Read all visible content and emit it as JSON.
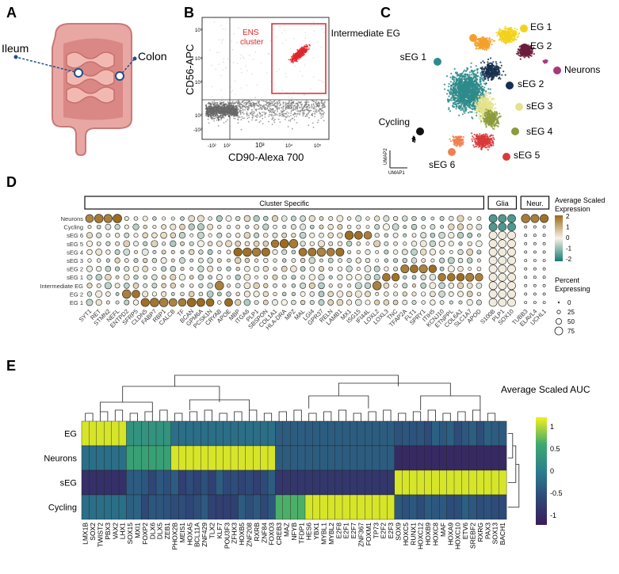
{
  "panel_letters": {
    "a": "A",
    "b": "B",
    "c": "C",
    "d": "D",
    "e": "E"
  },
  "panel_a": {
    "ileum": "Ileum",
    "colon": "Colon"
  },
  "panel_b": {
    "ylabel": "CD56-APC",
    "xlabel": "CD90-Alexa 700",
    "gate_label_1": "ENS",
    "gate_label_2": "cluster",
    "yticks": [
      "10⁵",
      "10⁴",
      "10³",
      "10²",
      "-10²"
    ],
    "xticks": [
      "-10²",
      "10²",
      "10³",
      "10⁴",
      "10⁵"
    ],
    "colors": {
      "gate": "#e0262b",
      "cells": "#777777"
    }
  },
  "panel_c": {
    "axis_1": "UMAP1",
    "axis_2": "UMAP2",
    "labels": [
      {
        "text": "Intermediate EG",
        "color": "#f4a02a"
      },
      {
        "text": "EG 1",
        "color": "#f2d21b"
      },
      {
        "text": "EG 2",
        "color": "#6b1b3b"
      },
      {
        "text": "Neurons",
        "color": "#a8397a"
      },
      {
        "text": "sEG 1",
        "color": "#2e8b8b"
      },
      {
        "text": "sEG 2",
        "color": "#16304f"
      },
      {
        "text": "sEG 3",
        "color": "#e4e38c"
      },
      {
        "text": "sEG 4",
        "color": "#8c9b3c"
      },
      {
        "text": "Cycling",
        "color": "#111111"
      },
      {
        "text": "sEG 5",
        "color": "#d93a3a"
      },
      {
        "text": "sEG 6",
        "color": "#f08050"
      }
    ]
  },
  "panel_d": {
    "groups": [
      "Cluster Specific",
      "Glia",
      "Neur."
    ],
    "rows": [
      "Neurons",
      "Cycling",
      "sEG 6",
      "sEG 5",
      "sEG 4",
      "sEG 3",
      "sEG 2",
      "sEG 1",
      "Intermediate EG",
      "EG 2",
      "EG 1"
    ],
    "genes_cluster": [
      "SYT1",
      "RET",
      "STMN2",
      "NEFL",
      "ENTPD2",
      "SFRP5",
      "CLDN5",
      "FABP7",
      "RBP1",
      "CALCB",
      "TF",
      "BCAN",
      "GPM6A",
      "PCSK1N",
      "CRYAB",
      "APOE",
      "MBP",
      "ITGA6",
      "PLP1",
      "SBSPON",
      "COL1A1",
      "HLA-DRA",
      "MPZ",
      "MAL",
      "LGI4",
      "GPR37",
      "RELN",
      "LAMB1",
      "MX1",
      "ISG15",
      "IFI44L",
      "LOXL2",
      "LOXL3",
      "TNC",
      "TFAP2A",
      "FLT1",
      "SPRY1",
      "ITIH5",
      "KCNJ10",
      "ETNPPL",
      "COL6A1",
      "SLC1A7",
      "APOD"
    ],
    "genes_glia": [
      "S100B",
      "PLP1",
      "SOX10"
    ],
    "genes_neur": [
      "TUBB3",
      "ELAVL4",
      "UCHL1"
    ],
    "legend_color_title_1": "Average Scaled",
    "legend_color_title_2": "Expression",
    "legend_color_ticks": [
      "2",
      "1",
      "0",
      "-1",
      "-2"
    ],
    "legend_size_title_1": "Percent",
    "legend_size_title_2": "Expressing",
    "legend_size_ticks": [
      "0",
      "25",
      "50",
      "75"
    ],
    "colors": {
      "high": "#9a6a1c",
      "mid": "#f6f2e6",
      "low": "#167a72"
    }
  },
  "panel_e": {
    "title": "Average Scaled AUC",
    "rows": [
      "EG",
      "Neurons",
      "sEG",
      "Cycling"
    ],
    "cols": [
      "LMX1B",
      "SOX2",
      "TWIST2",
      "PBX3",
      "VAX2",
      "LHX1",
      "SOX15",
      "MXI1",
      "FOXP2",
      "DLX6",
      "DLX5",
      "ZEB1",
      "PHOX2B",
      "MEIS1",
      "HOXA5",
      "BCL11A",
      "ZNF429",
      "TLX2",
      "KLF7",
      "POU3F3",
      "ZFHX3",
      "HOXB5",
      "ZNF208",
      "RXRB",
      "ZNF84",
      "FOXO3",
      "CREB3",
      "MAZ",
      "NFYB",
      "TFDP1",
      "HES6",
      "YBX1",
      "MYBL1",
      "MYBL2",
      "E2F8",
      "E2F1",
      "E2F7",
      "ZNF367",
      "FOXM1",
      "TP73",
      "E2F2",
      "E2F3",
      "SOX9",
      "HOXC5",
      "RUNX1",
      "HOXC12",
      "HOXB9",
      "HOXC8",
      "MAF",
      "HOXA9",
      "HOXC10",
      "ETV6",
      "SREBF2",
      "RXRG",
      "PAX3",
      "SOX13",
      "BACH1"
    ],
    "legend_ticks": [
      "1",
      "0.5",
      "0",
      "-0.5",
      "-1"
    ],
    "colors": {
      "low": "#3b1c5a",
      "mid": "#2a7f8e",
      "high": "#f2f01d"
    }
  }
}
